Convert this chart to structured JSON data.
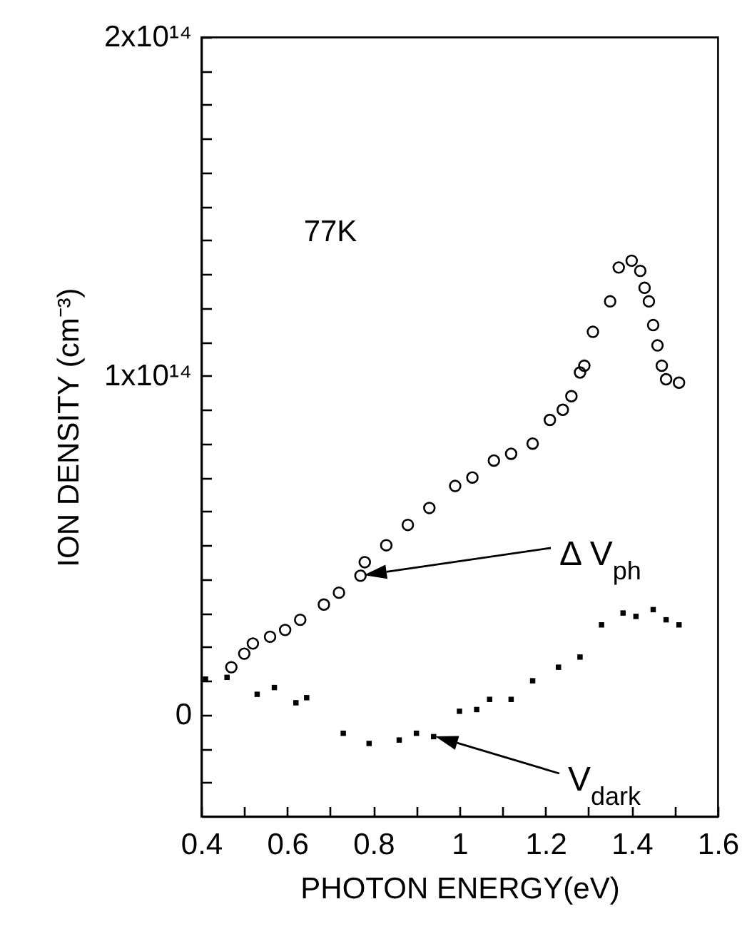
{
  "chart_data": {
    "type": "scatter",
    "xlabel": "PHOTON ENERGY(eV)",
    "ylabel": "ION DENSITY (cm⁻³)",
    "xlim": [
      0.4,
      1.6
    ],
    "xticks": [
      0.4,
      {
        "value": 0.5,
        "label": null
      },
      0.6,
      {
        "value": 0.7,
        "label": null
      },
      0.8,
      {
        "value": 0.9,
        "label": null
      },
      1,
      {
        "value": 1.1,
        "label": null
      },
      1.2,
      {
        "value": 1.3,
        "label": null
      },
      1.4,
      {
        "value": 1.5,
        "label": null
      },
      1.6
    ],
    "ylim": [
      -30000000000000.0,
      200000000000000.0
    ],
    "yticks": [
      {
        "value": -20000000000000.0,
        "label": null
      },
      {
        "value": -10000000000000.0,
        "label": null
      },
      0,
      {
        "value": 10000000000000.0,
        "label": null
      },
      {
        "value": 20000000000000.0,
        "label": null
      },
      {
        "value": 30000000000000.0,
        "label": null
      },
      {
        "value": 40000000000000.0,
        "label": null
      },
      {
        "value": 50000000000000.0,
        "label": null
      },
      {
        "value": 60000000000000.0,
        "label": null
      },
      {
        "value": 70000000000000.0,
        "label": null
      },
      {
        "value": 80000000000000.0,
        "label": null
      },
      {
        "value": 90000000000000.0,
        "label": null
      },
      {
        "value": 100000000000000.0,
        "label": "1x10¹⁴"
      },
      {
        "value": 110000000000000.0,
        "label": null
      },
      {
        "value": 120000000000000.0,
        "label": null
      },
      {
        "value": 130000000000000.0,
        "label": null
      },
      {
        "value": 140000000000000.0,
        "label": null
      },
      {
        "value": 150000000000000.0,
        "label": null
      },
      {
        "value": 160000000000000.0,
        "label": null
      },
      {
        "value": 170000000000000.0,
        "label": null
      },
      {
        "value": 180000000000000.0,
        "label": null
      },
      {
        "value": 190000000000000.0,
        "label": null
      },
      {
        "value": 200000000000000.0,
        "label": "2x10¹⁴"
      }
    ],
    "grid": false,
    "series": [
      {
        "color": "#000000",
        "marker": "circle",
        "x": [
          0.47,
          0.5,
          0.52,
          0.56,
          0.595,
          0.63,
          0.685,
          0.72,
          0.77,
          0.78,
          0.83,
          0.88,
          0.93,
          0.99,
          1.03,
          1.08,
          1.12,
          1.17,
          1.21,
          1.24,
          1.26,
          1.28,
          1.29,
          1.31,
          1.35,
          1.37,
          1.4,
          1.42,
          1.43,
          1.44,
          1.45,
          1.46,
          1.47,
          1.48,
          1.51
        ],
        "values": [
          14000000000000.0,
          18000000000000.0,
          21000000000000.0,
          23000000000000.0,
          25000000000000.0,
          28000000000000.0,
          32500000000000.0,
          36000000000000.0,
          41000000000000.0,
          45000000000000.0,
          50000000000000.0,
          56000000000000.0,
          61000000000000.0,
          67500000000000.0,
          70000000000000.0,
          75000000000000.0,
          77000000000000.0,
          80000000000000.0,
          87000000000000.0,
          90000000000000.0,
          94000000000000.0,
          101000000000000.0,
          103000000000000.0,
          113000000000000.0,
          122000000000000.0,
          132000000000000.0,
          134000000000000.0,
          131000000000000.0,
          126000000000000.0,
          122000000000000.0,
          115000000000000.0,
          109000000000000.0,
          103000000000000.0,
          99000000000000.0,
          98000000000000.0
        ]
      },
      {
        "color": "#000000",
        "marker": "square",
        "x": [
          0.41,
          0.46,
          0.53,
          0.57,
          0.62,
          0.645,
          0.73,
          0.79,
          0.86,
          0.9,
          0.94,
          1.0,
          1.04,
          1.07,
          1.12,
          1.17,
          1.23,
          1.28,
          1.33,
          1.38,
          1.41,
          1.45,
          1.48,
          1.51
        ],
        "values": [
          10500000000000.0,
          11000000000000.0,
          6000000000000.0,
          8000000000000.0,
          3500000000000.0,
          5000000000000.0,
          -5500000000000.0,
          -8500000000000.0,
          -7500000000000.0,
          -5500000000000.0,
          -6500000000000.0,
          1000000000000.0,
          1500000000000.0,
          4500000000000.0,
          4500000000000.0,
          10000000000000.0,
          14000000000000.0,
          17000000000000.0,
          26500000000000.0,
          30000000000000.0,
          29000000000000.0,
          31000000000000.0,
          28000000000000.0,
          26500000000000.0
        ]
      }
    ],
    "annotations": [
      "77K",
      "Δ V$_{ph}$",
      "V$_{dark}$"
    ]
  }
}
